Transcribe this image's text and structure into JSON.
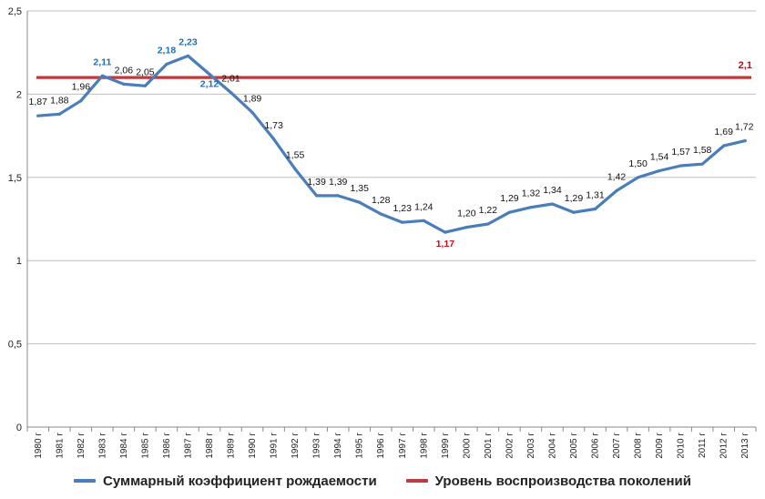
{
  "chart_data": {
    "type": "line",
    "categories": [
      "1980 г",
      "1981 г",
      "1982 г",
      "1983 г",
      "1984 г",
      "1985 г",
      "1986 г",
      "1987 г",
      "1988 г",
      "1989 г",
      "1990 г",
      "1991 г",
      "1992 г",
      "1993 г",
      "1994 г",
      "1995 г",
      "1996 г",
      "1997 г",
      "1998 г",
      "1999 г",
      "2000 г",
      "2001 г",
      "2002 г",
      "2003 г",
      "2004 г",
      "2005 г",
      "2006 г",
      "2007 г",
      "2008 г",
      "2009 г",
      "2010 г",
      "2011 г",
      "2012 г",
      "2013 г"
    ],
    "series": [
      {
        "name": "Суммарный коэффициент рождаемости",
        "color": "#4a7ebb",
        "values": [
          1.87,
          1.88,
          1.96,
          2.11,
          2.06,
          2.05,
          2.18,
          2.23,
          2.12,
          2.01,
          1.89,
          1.73,
          1.55,
          1.39,
          1.39,
          1.35,
          1.28,
          1.23,
          1.24,
          1.17,
          1.2,
          1.22,
          1.29,
          1.32,
          1.34,
          1.29,
          1.31,
          1.42,
          1.5,
          1.54,
          1.57,
          1.58,
          1.69,
          1.72
        ],
        "labels": [
          "1,87",
          "1,88",
          "1,96",
          "2,11",
          "2,06",
          "2,05",
          "2,18",
          "2,23",
          "2,12",
          "2,01",
          "1,89",
          "1,73",
          "1,55",
          "1,39",
          "1,39",
          "1,35",
          "1,28",
          "1,23",
          "1,24",
          "1,17",
          "1,20",
          "1,22",
          "1,29",
          "1,32",
          "1,34",
          "1,29",
          "1,31",
          "1,42",
          "1,50",
          "1,54",
          "1,57",
          "1,58",
          "1,69",
          "1,72"
        ],
        "highlight_above_reference": [
          3,
          6,
          7,
          8
        ],
        "highlight_minimum": [
          19
        ]
      },
      {
        "name": "Уровень воспроизводства поколений",
        "color": "#c0393b",
        "value": 2.1,
        "label": "2,1"
      }
    ],
    "y_ticks": [
      {
        "value": 0,
        "label": "0"
      },
      {
        "value": 0.5,
        "label": "0,5"
      },
      {
        "value": 1,
        "label": "1"
      },
      {
        "value": 1.5,
        "label": "1,5"
      },
      {
        "value": 2,
        "label": "2"
      },
      {
        "value": 2.5,
        "label": "2,5"
      }
    ],
    "ylim": [
      0,
      2.5
    ],
    "grid": true,
    "legend_position": "bottom",
    "title": "",
    "xlabel": "",
    "ylabel": ""
  }
}
